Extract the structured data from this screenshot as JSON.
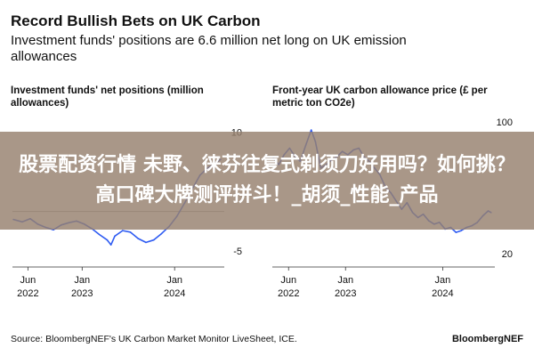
{
  "header": {
    "title": "Record Bullish Bets on UK Carbon",
    "subtitle": "Investment funds' positions are 6.6 million net long on UK emission allowances"
  },
  "banner": {
    "text": "股票配资行情 未野、徕芬往复式剃须刀好用吗？如何挑？高口碑大牌测评拼斗！_胡须_性能_产品"
  },
  "footer": {
    "source": "Source: BloombergNEF's UK Carbon Market Monitor LiveSheet, ICE.",
    "brand": "BloombergNEF"
  },
  "colors": {
    "series": "#2f5cf2",
    "zero_line": "#999999"
  },
  "chart_data": [
    {
      "type": "line",
      "title": "Investment funds' net positions (million allowances)",
      "x_ticks": [
        {
          "x": "2022-06-01",
          "label": "Jun\n2022"
        },
        {
          "x": "2023-01-01",
          "label": "Jan\n2023"
        },
        {
          "x": "2024-01-01",
          "label": "Jan\n2024"
        }
      ],
      "y_ticks": [
        10,
        -5
      ],
      "ylim": [
        -7,
        13
      ],
      "xlim": [
        "2022-04-01",
        "2024-07-15"
      ],
      "series": [
        {
          "points": [
            [
              "2022-04-05",
              -1.0
            ],
            [
              "2022-05-10",
              -1.3
            ],
            [
              "2022-06-10",
              -0.9
            ],
            [
              "2022-07-10",
              -1.6
            ],
            [
              "2022-08-10",
              -2.0
            ],
            [
              "2022-09-10",
              -2.3
            ],
            [
              "2022-10-10",
              -1.7
            ],
            [
              "2022-11-10",
              -1.4
            ],
            [
              "2022-12-10",
              -1.2
            ],
            [
              "2023-01-10",
              -1.6
            ],
            [
              "2023-02-10",
              -2.2
            ],
            [
              "2023-03-10",
              -2.9
            ],
            [
              "2023-04-10",
              -3.6
            ],
            [
              "2023-04-25",
              -4.2
            ],
            [
              "2023-05-10",
              -3.1
            ],
            [
              "2023-06-10",
              -2.4
            ],
            [
              "2023-07-10",
              -2.6
            ],
            [
              "2023-08-10",
              -3.4
            ],
            [
              "2023-09-10",
              -3.9
            ],
            [
              "2023-10-10",
              -3.6
            ],
            [
              "2023-11-10",
              -2.8
            ],
            [
              "2023-12-10",
              -1.9
            ],
            [
              "2024-01-10",
              -0.6
            ],
            [
              "2024-02-10",
              1.1
            ],
            [
              "2024-03-10",
              2.8
            ],
            [
              "2024-04-10",
              4.6
            ],
            [
              "2024-05-10",
              5.5
            ],
            [
              "2024-06-10",
              6.1
            ],
            [
              "2024-07-01",
              6.6
            ]
          ]
        }
      ]
    },
    {
      "type": "line",
      "title": "Front-year UK carbon allowance price (£ per metric ton CO2e)",
      "x_ticks": [
        {
          "x": "2022-06-01",
          "label": "Jun\n2022"
        },
        {
          "x": "2023-01-01",
          "label": "Jan\n2023"
        },
        {
          "x": "2024-01-01",
          "label": "Jan\n2024"
        }
      ],
      "y_ticks": [
        100,
        20
      ],
      "ylim": [
        12,
        108
      ],
      "xlim": [
        "2022-04-01",
        "2024-07-15"
      ],
      "series": [
        {
          "points": [
            [
              "2022-04-05",
              78
            ],
            [
              "2022-04-25",
              74
            ],
            [
              "2022-05-15",
              80
            ],
            [
              "2022-06-05",
              84
            ],
            [
              "2022-06-25",
              79
            ],
            [
              "2022-07-15",
              76
            ],
            [
              "2022-08-05",
              86
            ],
            [
              "2022-08-25",
              95
            ],
            [
              "2022-09-10",
              88
            ],
            [
              "2022-09-30",
              72
            ],
            [
              "2022-10-20",
              74
            ],
            [
              "2022-11-10",
              77
            ],
            [
              "2022-12-01",
              79
            ],
            [
              "2022-12-20",
              82
            ],
            [
              "2023-01-10",
              80
            ],
            [
              "2023-01-31",
              83
            ],
            [
              "2023-02-20",
              84
            ],
            [
              "2023-03-10",
              79
            ],
            [
              "2023-03-31",
              76
            ],
            [
              "2023-04-20",
              72
            ],
            [
              "2023-05-10",
              68
            ],
            [
              "2023-06-01",
              60
            ],
            [
              "2023-06-20",
              57
            ],
            [
              "2023-07-10",
              52
            ],
            [
              "2023-07-31",
              47
            ],
            [
              "2023-08-20",
              51
            ],
            [
              "2023-09-10",
              45
            ],
            [
              "2023-09-30",
              42
            ],
            [
              "2023-10-20",
              44
            ],
            [
              "2023-11-10",
              40
            ],
            [
              "2023-11-30",
              38
            ],
            [
              "2023-12-20",
              39
            ],
            [
              "2024-01-10",
              35
            ],
            [
              "2024-01-31",
              36
            ],
            [
              "2024-02-20",
              33
            ],
            [
              "2024-03-10",
              34
            ],
            [
              "2024-03-31",
              36
            ],
            [
              "2024-04-20",
              37
            ],
            [
              "2024-05-10",
              39
            ],
            [
              "2024-05-31",
              43
            ],
            [
              "2024-06-20",
              46
            ],
            [
              "2024-07-01",
              45
            ]
          ]
        }
      ]
    }
  ]
}
